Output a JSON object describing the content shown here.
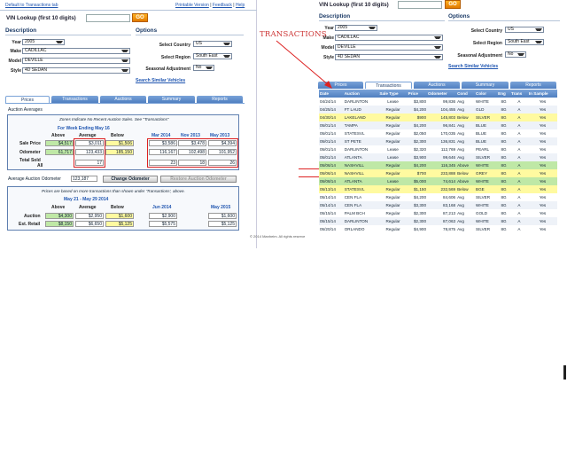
{
  "left": {
    "top_link": "Default to Transactions tab",
    "top_right_links": [
      "Printable Version",
      "Feedback",
      "Help"
    ],
    "vin_label": "VIN Lookup (first 10 digits)",
    "go_label": "GO",
    "description_title": "Description",
    "options_title": "Options",
    "fields": [
      {
        "label": "Year",
        "value": "2005"
      },
      {
        "label": "Make",
        "value": "CADILLAC"
      },
      {
        "label": "Model",
        "value": "DEVILLE"
      },
      {
        "label": "Style",
        "value": "4D SEDAN"
      }
    ],
    "options": [
      {
        "label": "Select Country",
        "value": "US"
      },
      {
        "label": "Select Region",
        "value": "South East"
      },
      {
        "label": "Seasonal Adjustment",
        "value": "No"
      }
    ],
    "search_similar": "Search Similar Vehicles",
    "tabs": [
      "Prices",
      "Transactions",
      "Auctions",
      "Summary",
      "Reports"
    ],
    "active_tab": "Prices",
    "auction_averages": "Auction Averages",
    "zones_note": "Zones Indicate No Recent Auction Sales. See \"Transactions\"",
    "week_ending": "For Week Ending May 16",
    "col_heads": [
      "Above",
      "Average",
      "Below"
    ],
    "month_heads": [
      "Mar 2014",
      "Nov 2013",
      "May 2013"
    ],
    "rows": [
      {
        "label": "Sale Price",
        "above": "$4,517",
        "average": "$3,011",
        "below": "$1,506",
        "m1": "$3,586",
        "m2": "$3,478",
        "m3": "$4,394"
      },
      {
        "label": "Odometer",
        "above": "61,717",
        "average": "123,433",
        "below": "185,150",
        "m1": "116,167",
        "m2": "102,498",
        "m3": "101,952"
      },
      {
        "label": "Total Sold",
        "label2": "All",
        "above": "",
        "average": "17",
        "below": "",
        "m1": "23",
        "m2": "18",
        "m3": "26"
      }
    ],
    "avg_odo_label": "Average Auction Odometer",
    "avg_odo_value": "123,187",
    "change_odo": "Change Odometer",
    "restore_odo": "Restore Auction Odometer",
    "prices_note": "Prices are based on more transactions than shown under 'Transactions', above.",
    "range_title": "May 21 - May 29 2014",
    "month_heads2": [
      "Jun 2014",
      "May 2015"
    ],
    "rows2": [
      {
        "label": "Auction",
        "above": "$4,300",
        "average": "$2,950",
        "below": "$1,600",
        "m1": "$2,900",
        "m2": "$1,600"
      },
      {
        "label": "Est. Retail",
        "above": "$8,150",
        "average": "$6,650",
        "below": "$5,125",
        "m1": "$5,575",
        "m2": "$5,125"
      }
    ],
    "copyright": "© 2014 Manheim. All rights reserve"
  },
  "right": {
    "vin_label": "VIN Lookup (first 10 digits)",
    "go_label": "GO",
    "description_title": "Description",
    "options_title": "Options",
    "fields": [
      {
        "label": "Year",
        "value": "2005"
      },
      {
        "label": "Make",
        "value": "CADILLAC"
      },
      {
        "label": "Model",
        "value": "DEVILLE"
      },
      {
        "label": "Style",
        "value": "4D SEDAN"
      }
    ],
    "options": [
      {
        "label": "Select Country",
        "value": "US"
      },
      {
        "label": "Select Region",
        "value": "South East"
      },
      {
        "label": "Seasonal Adjustment",
        "value": "No"
      }
    ],
    "search_similar": "Search Similar Vehicles",
    "annotation": "TRANSACTIONS",
    "tabs": [
      "Prices",
      "Transactions",
      "Auctions",
      "Summary",
      "Reports"
    ],
    "active_tab": "Transactions",
    "table_heads": [
      "Date",
      "Auction",
      "Sale Type",
      "Price",
      "Odometer",
      "Cond",
      "Color",
      "Eng",
      "Trans",
      "In Sample"
    ],
    "table_rows": [
      [
        "04/24/14",
        "DARLINTON",
        "Lease",
        "$3,800",
        "99,836",
        "Avg",
        "WHITE",
        "8G",
        "A",
        "Yes"
      ],
      [
        "04/25/14",
        "FT LAUD",
        "Regular",
        "$4,200",
        "104,455",
        "Avg",
        "GLD",
        "8G",
        "A",
        "Yes"
      ],
      [
        "04/30/14",
        "LAKELAND",
        "Regular",
        "$900",
        "145,803",
        "Below",
        "SILVER",
        "8G",
        "A",
        "Yes"
      ],
      [
        "05/01/14",
        "TAMPA",
        "Regular",
        "$4,200",
        "96,841",
        "Avg",
        "BLUE",
        "8G",
        "A",
        "Yes"
      ],
      [
        "05/01/14",
        "STATESVL",
        "Regular",
        "$2,050",
        "170,035",
        "Avg",
        "BLUE",
        "8G",
        "A",
        "Yes"
      ],
      [
        "05/01/14",
        "ST PETE",
        "Regular",
        "$2,300",
        "136,831",
        "Avg",
        "BLUE",
        "8G",
        "A",
        "Yes"
      ],
      [
        "05/01/14",
        "DARLINTON",
        "Lease",
        "$2,320",
        "112,769",
        "Avg",
        "PEARL",
        "8G",
        "A",
        "Yes"
      ],
      [
        "05/01/14",
        "ATLANTA",
        "Lease",
        "$3,900",
        "99,646",
        "Avg",
        "SILVER",
        "8G",
        "A",
        "Yes"
      ],
      [
        "05/06/14",
        "NASHVILL",
        "Regular",
        "$4,200",
        "116,345",
        "Above",
        "WHITE",
        "8G",
        "A",
        "Yes"
      ],
      [
        "05/06/14",
        "NASHVILL",
        "Regular",
        "$700",
        "233,888",
        "Below",
        "GREY",
        "8G",
        "A",
        "Yes"
      ],
      [
        "05/08/14",
        "ATLANTA",
        "Lease",
        "$5,000",
        "74,614",
        "Above",
        "WHITE",
        "8G",
        "A",
        "Yes"
      ],
      [
        "05/13/14",
        "STATESVL",
        "Regular",
        "$1,150",
        "232,569",
        "Below",
        "BGE",
        "8G",
        "A",
        "Yes"
      ],
      [
        "05/14/14",
        "CEN FLA",
        "Regular",
        "$4,200",
        "84,606",
        "Avg",
        "SILVER",
        "8G",
        "A",
        "Yes"
      ],
      [
        "05/14/14",
        "CEN FLA",
        "Regular",
        "$3,300",
        "83,168",
        "Avg",
        "WHITE",
        "8G",
        "A",
        "Yes"
      ],
      [
        "05/15/14",
        "PALM BCH",
        "Regular",
        "$2,300",
        "87,213",
        "Avg",
        "GOLD",
        "8G",
        "A",
        "Yes"
      ],
      [
        "05/15/14",
        "DARLINTON",
        "Regular",
        "$2,300",
        "87,063",
        "Avg",
        "WHITE",
        "8G",
        "A",
        "Yes"
      ],
      [
        "05/20/14",
        "ORLANDO",
        "Regular",
        "$4,900",
        "78,875",
        "Avg",
        "SILVER",
        "8G",
        "A",
        "Yes"
      ]
    ]
  }
}
